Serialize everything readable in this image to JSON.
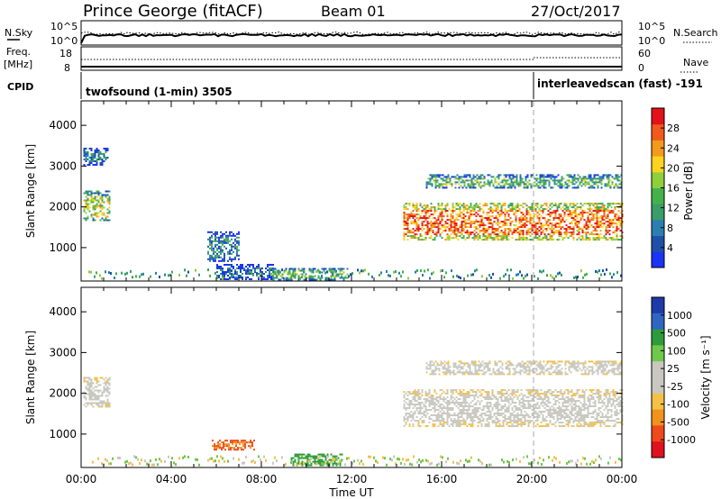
{
  "header": {
    "station": "Prince George (fitACF)",
    "beam": "Beam 01",
    "date": "27/Oct/2017"
  },
  "strips": {
    "nsky_label": "N.Sky",
    "nsky_ticks": [
      "10^5",
      "10^0"
    ],
    "nsearch_label": "N.Search",
    "nsearch_ticks": [
      "10^5",
      "10^0"
    ],
    "freq_label_1": "Freq.",
    "freq_label_2": "[MHz]",
    "freq_ticks": [
      "18",
      "8"
    ],
    "nave_label": "Nave",
    "nave_ticks": [
      "60",
      "0"
    ],
    "cpid_label": "CPID",
    "cpid_left": "twofsound (1-min) 3505",
    "cpid_right": "interleavedscan (fast) -191"
  },
  "colors": {
    "power_scale": [
      "#1a33f5",
      "#1f4fa8",
      "#2a7fb0",
      "#3a9d6a",
      "#44b24a",
      "#8fcf3c",
      "#ffd21f",
      "#f39a1a",
      "#f15a1a",
      "#e4101a"
    ],
    "velocity_scale": [
      "#1d3aa8",
      "#2f66c4",
      "#2d9b3b",
      "#70c84a",
      "#c8c8c0",
      "#c8c8c0",
      "#f5c046",
      "#f0921c",
      "#ee4a1c",
      "#e0121e"
    ]
  },
  "chart_data": [
    {
      "type": "heatmap",
      "name": "Power",
      "ylabel": "Slant Range [km]",
      "yticks": [
        "1000",
        "2000",
        "3000",
        "4000"
      ],
      "ylim": [
        180,
        4600
      ],
      "xlim_hours": [
        0,
        24
      ],
      "colorbar_label": "Power [dB]",
      "colorbar_ticks": [
        "28",
        "24",
        "20",
        "16",
        "12",
        "8",
        "4"
      ],
      "colorbar_range": [
        0,
        32
      ],
      "regions": [
        {
          "t0": 0.1,
          "t1": 1.3,
          "r0": 1650,
          "r1": 2400,
          "value": 18
        },
        {
          "t0": 0.1,
          "t1": 1.2,
          "r0": 3050,
          "r1": 3450,
          "value": 8
        },
        {
          "t0": 5.6,
          "t1": 7.0,
          "r0": 650,
          "r1": 1400,
          "value": 9
        },
        {
          "t0": 6.0,
          "t1": 8.5,
          "r0": 220,
          "r1": 600,
          "value": 6
        },
        {
          "t0": 8.5,
          "t1": 11.8,
          "r0": 230,
          "r1": 500,
          "value": 14
        },
        {
          "t0": 14.3,
          "t1": 24.0,
          "r0": 1200,
          "r1": 2100,
          "value": 26
        },
        {
          "t0": 15.3,
          "t1": 24.0,
          "r0": 2450,
          "r1": 2800,
          "value": 14
        }
      ]
    },
    {
      "type": "heatmap",
      "name": "Velocity",
      "ylabel": "Slant Range [km]",
      "yticks": [
        "1000",
        "2000",
        "3000",
        "4000"
      ],
      "ylim": [
        180,
        4600
      ],
      "xlim_hours": [
        0,
        24
      ],
      "xticks": [
        "00:00",
        "04:00",
        "08:00",
        "12:00",
        "16:00",
        "20:00",
        "00:00"
      ],
      "xlabel": "Time UT",
      "colorbar_label": "Velocity [m s⁻¹]",
      "colorbar_ticks": [
        "1000",
        "500",
        "100",
        "25",
        "-25",
        "-100",
        "-500",
        "-1000"
      ],
      "regions": [
        {
          "t0": 0.1,
          "t1": 1.3,
          "r0": 1650,
          "r1": 2400,
          "value": 0
        },
        {
          "t0": 5.8,
          "t1": 7.7,
          "r0": 620,
          "r1": 860,
          "value": -300
        },
        {
          "t0": 9.3,
          "t1": 11.6,
          "r0": 250,
          "r1": 520,
          "value": 150
        },
        {
          "t0": 14.3,
          "t1": 24.0,
          "r0": 1200,
          "r1": 2100,
          "value": 0
        },
        {
          "t0": 15.3,
          "t1": 24.0,
          "r0": 2450,
          "r1": 2800,
          "value": 0
        }
      ]
    }
  ]
}
